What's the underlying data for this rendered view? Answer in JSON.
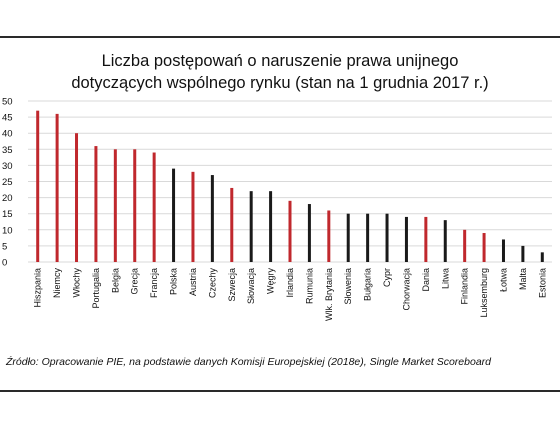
{
  "chart_data": {
    "type": "bar",
    "title_lines": [
      "Liczba postępowań o naruszenie prawa unijnego",
      "dotyczących wspólnego rynku (stan na 1 grudnia 2017 r.)"
    ],
    "xlabel": "",
    "ylabel": "",
    "ylim": [
      0,
      50
    ],
    "yticks": [
      0,
      5,
      10,
      15,
      20,
      25,
      30,
      35,
      40,
      45,
      50
    ],
    "grid": true,
    "categories": [
      "Hiszpania",
      "Niemcy",
      "Włochy",
      "Portugalia",
      "Belgia",
      "Grecja",
      "Francja",
      "Polska",
      "Austria",
      "Czechy",
      "Szwecja",
      "Słowacja",
      "Węgry",
      "Irlandia",
      "Rumunia",
      "Wlk. Brytania",
      "Słowenia",
      "Bułgaria",
      "Cypr",
      "Chorwacja",
      "Dania",
      "Litwa",
      "Finlandia",
      "Luksemburg",
      "Łotwa",
      "Malta",
      "Estonia"
    ],
    "values": [
      47,
      46,
      40,
      36,
      35,
      35,
      34,
      29,
      28,
      27,
      23,
      22,
      22,
      19,
      18,
      16,
      15,
      15,
      15,
      14,
      14,
      13,
      10,
      9,
      7,
      5,
      3
    ],
    "bar_colors": [
      "#c0282d",
      "#c0282d",
      "#c0282d",
      "#c0282d",
      "#c0282d",
      "#c0282d",
      "#c0282d",
      "#1a1a1a",
      "#c0282d",
      "#1a1a1a",
      "#c0282d",
      "#1a1a1a",
      "#1a1a1a",
      "#c0282d",
      "#1a1a1a",
      "#c0282d",
      "#1a1a1a",
      "#1a1a1a",
      "#1a1a1a",
      "#1a1a1a",
      "#c0282d",
      "#1a1a1a",
      "#c0282d",
      "#c0282d",
      "#1a1a1a",
      "#1a1a1a",
      "#1a1a1a"
    ]
  },
  "source_text": "Źródło: Opracowanie PIE, na podstawie danych Komisji Europejskiej (2018e), Single Market Scoreboard",
  "colors": {
    "red_bar": "#c0282d",
    "black_bar": "#1a1a1a",
    "gridline": "#d9d9d9",
    "text": "#111111"
  }
}
